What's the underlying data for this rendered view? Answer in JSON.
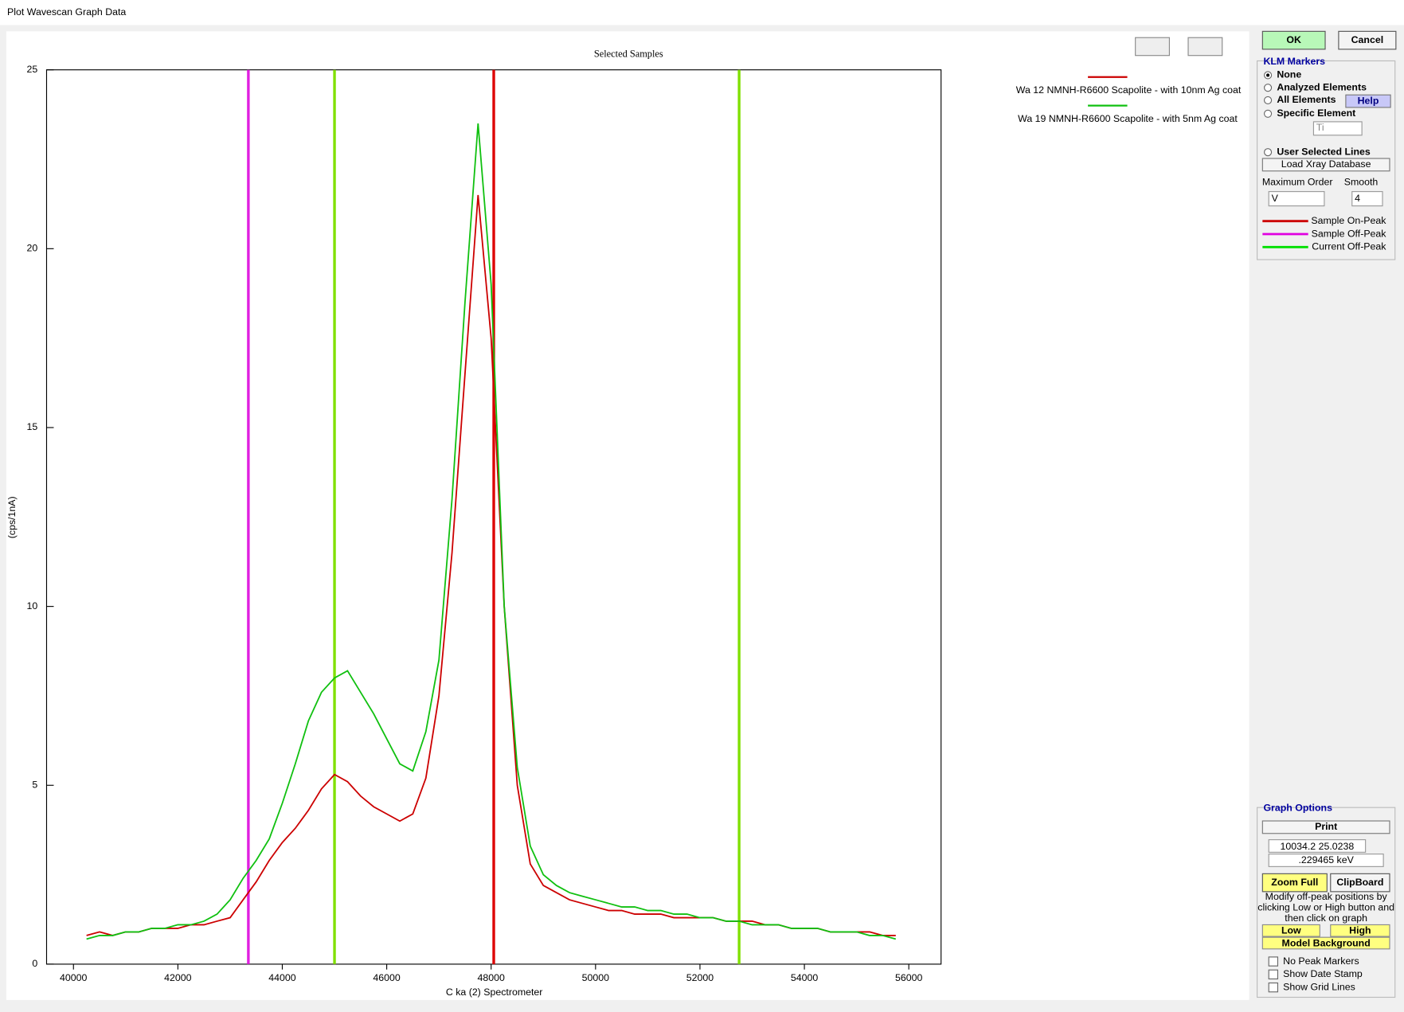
{
  "window": {
    "title": "Plot Wavescan Graph Data"
  },
  "buttons": {
    "ok": "OK",
    "cancel": "Cancel"
  },
  "klm": {
    "title": "KLM Markers",
    "options": [
      "None",
      "Analyzed Elements",
      "All Elements",
      "Specific Element",
      "User Selected Lines"
    ],
    "help": "Help",
    "element": "Ti",
    "load": "Load Xray Database",
    "max_order_label": "Maximum Order",
    "max_order": "V",
    "smooth_label": "Smooth",
    "smooth": "4",
    "legend": [
      {
        "name": "Sample On-Peak",
        "color": "#cc0000"
      },
      {
        "name": "Sample Off-Peak",
        "color": "#e000e0"
      },
      {
        "name": "Current Off-Peak",
        "color": "#00e000"
      }
    ]
  },
  "graph_options": {
    "title": "Graph Options",
    "print": "Print",
    "coords": "10034.2  25.0238",
    "kev": ".229465 keV",
    "zoom": "Zoom Full",
    "clipboard": "ClipBoard",
    "note": [
      "Modify off-peak positions by",
      "clicking Low or High button and",
      "then click on graph"
    ],
    "low": "Low",
    "high": "High",
    "model": "Model  Background",
    "checks": [
      "No Peak Markers",
      "Show Date Stamp",
      "Show Grid Lines"
    ]
  },
  "chart_data": {
    "type": "line",
    "title": "Selected Samples",
    "x_label": "C  ka (2) Spectrometer",
    "y_label": "(cps/1nA)",
    "x": [
      40250,
      40500,
      40750,
      41000,
      41250,
      41500,
      41750,
      42000,
      42250,
      42500,
      42750,
      43000,
      43250,
      43500,
      43750,
      44000,
      44250,
      44500,
      44750,
      45000,
      45250,
      45500,
      45750,
      46000,
      46250,
      46500,
      46750,
      47000,
      47250,
      47500,
      47750,
      48000,
      48250,
      48500,
      48750,
      49000,
      49250,
      49500,
      49750,
      50000,
      50250,
      50500,
      50750,
      51000,
      51250,
      51500,
      51750,
      52000,
      52250,
      52500,
      52750,
      53000,
      53250,
      53500,
      53750,
      54000,
      54250,
      54500,
      54750,
      55000,
      55250,
      55500,
      55750
    ],
    "xlim": [
      39485,
      56618
    ],
    "xticks": [
      40000,
      42000,
      44000,
      46000,
      48000,
      50000,
      52000,
      54000,
      56000
    ],
    "ylim": [
      0,
      25
    ],
    "yticks": [
      0,
      5,
      10,
      15,
      20,
      25
    ],
    "series": [
      {
        "name": "Wa   12  NMNH-R6600 Scapolite - with 10nm Ag coat",
        "color": "#cc0000",
        "values": [
          0.8,
          0.9,
          0.8,
          0.9,
          0.9,
          1.0,
          1.0,
          1.0,
          1.1,
          1.1,
          1.2,
          1.3,
          1.8,
          2.3,
          2.9,
          3.4,
          3.8,
          4.3,
          4.9,
          5.3,
          5.1,
          4.7,
          4.4,
          4.2,
          4.0,
          4.2,
          5.2,
          7.5,
          11.5,
          16.5,
          21.5,
          17.5,
          10.0,
          5.0,
          2.8,
          2.2,
          2.0,
          1.8,
          1.7,
          1.6,
          1.5,
          1.5,
          1.4,
          1.4,
          1.4,
          1.3,
          1.3,
          1.3,
          1.3,
          1.2,
          1.2,
          1.2,
          1.1,
          1.1,
          1.0,
          1.0,
          1.0,
          0.9,
          0.9,
          0.9,
          0.9,
          0.8,
          0.8
        ]
      },
      {
        "name": "Wa   19  NMNH-R6600 Scapolite - with 5nm Ag coat",
        "color": "#10c010",
        "values": [
          0.7,
          0.8,
          0.8,
          0.9,
          0.9,
          1.0,
          1.0,
          1.1,
          1.1,
          1.2,
          1.4,
          1.8,
          2.4,
          2.9,
          3.5,
          4.5,
          5.6,
          6.8,
          7.6,
          8.0,
          8.2,
          7.6,
          7.0,
          6.3,
          5.6,
          5.4,
          6.5,
          8.5,
          13,
          18.5,
          23.5,
          19,
          10,
          5.5,
          3.3,
          2.5,
          2.2,
          2.0,
          1.9,
          1.8,
          1.7,
          1.6,
          1.6,
          1.5,
          1.5,
          1.4,
          1.4,
          1.3,
          1.3,
          1.2,
          1.2,
          1.1,
          1.1,
          1.1,
          1.0,
          1.0,
          1.0,
          0.9,
          0.9,
          0.9,
          0.8,
          0.8,
          0.7
        ]
      }
    ],
    "markers": [
      {
        "x": 43350,
        "color": "#e020e0"
      },
      {
        "x": 45000,
        "color": "#80e000"
      },
      {
        "x": 48050,
        "color": "#dd0000"
      },
      {
        "x": 52750,
        "color": "#80e000"
      }
    ]
  }
}
